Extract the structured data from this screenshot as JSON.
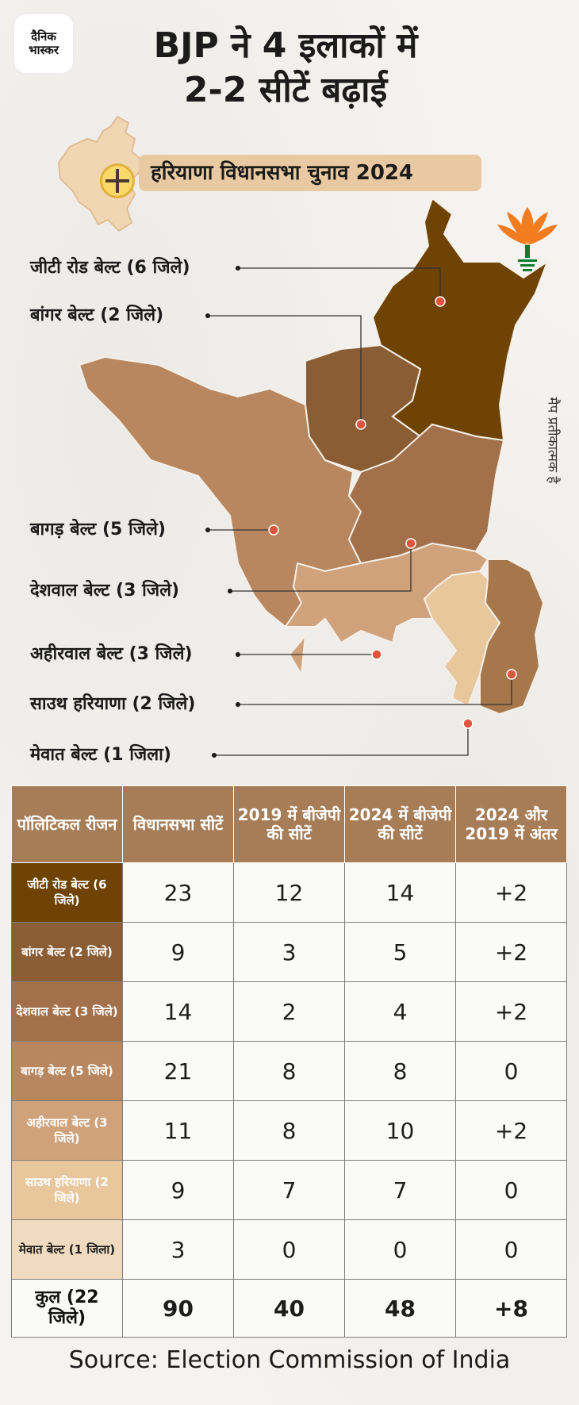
{
  "logo": {
    "line1": "दैनिक",
    "line2": "भास्कर"
  },
  "title": {
    "line1": "BJP ने 4 इलाकों में",
    "line2": "2-2 सीटें बढ़ाई"
  },
  "banner": "हरियाणा विधानसभा चुनाव 2024",
  "disclaimer": "मैप प्रतीकात्मक है",
  "colors": {
    "header_bg": "#a77d57",
    "positive": "#2d9b2d",
    "zero": "#d52121"
  },
  "regions": [
    {
      "label": "जीटी रोड बेल्ट (6 जिले)",
      "color": "#6e4303"
    },
    {
      "label": "बांगर बेल्ट (2 जिले)",
      "color": "#8b5d35"
    },
    {
      "label": "बागड़ बेल्ट (5 जिले)",
      "color": "#b8875f"
    },
    {
      "label": "देशवाल बेल्ट (3 जिले)",
      "color": "#a2704a"
    },
    {
      "label": "अहीरवाल बेल्ट (3 जिले)",
      "color": "#d0a27b"
    },
    {
      "label": "साउथ हरियाणा (2 जिले)",
      "color": "#e8c79d"
    },
    {
      "label": "मेवात बेल्ट (1 जिला)",
      "color": "#f1dbc0"
    }
  ],
  "chart_data": {
    "type": "table",
    "columns": [
      "पॉलिटिकल रीजन",
      "विधानसभा सीटें",
      "2019 में बीजेपी की सीटें",
      "2024 में बीजेपी की सीटें",
      "2024 और 2019 में अंतर"
    ],
    "rows": [
      {
        "region": "जीटी रोड बेल्ट (6 जिले)",
        "seats": "23",
        "bjp2019": "12",
        "bjp2024": "14",
        "diff": "+2",
        "color": "#6e4303",
        "text": "#ffffff"
      },
      {
        "region": "बांगर बेल्ट (2 जिले)",
        "seats": "9",
        "bjp2019": "3",
        "bjp2024": "5",
        "diff": "+2",
        "color": "#8b5d35",
        "text": "#ffffff"
      },
      {
        "region": "देशवाल बेल्ट (3 जिले)",
        "seats": "14",
        "bjp2019": "2",
        "bjp2024": "4",
        "diff": "+2",
        "color": "#a2704a",
        "text": "#ffffff"
      },
      {
        "region": "बागड़ बेल्ट (5 जिले)",
        "seats": "21",
        "bjp2019": "8",
        "bjp2024": "8",
        "diff": "0",
        "color": "#b8875f",
        "text": "#ffffff"
      },
      {
        "region": "अहीरवाल बेल्ट (3 जिले)",
        "seats": "11",
        "bjp2019": "8",
        "bjp2024": "10",
        "diff": "+2",
        "color": "#d0a27b",
        "text": "#ffffff"
      },
      {
        "region": "साउथ हरियाणा (2 जिले)",
        "seats": "9",
        "bjp2019": "7",
        "bjp2024": "7",
        "diff": "0",
        "color": "#e8c79d",
        "text": "#ffffff"
      },
      {
        "region": "मेवात बेल्ट (1 जिला)",
        "seats": "3",
        "bjp2019": "0",
        "bjp2024": "0",
        "diff": "0",
        "color": "#f1dbc0",
        "text": "#1d1d1d"
      }
    ],
    "total": {
      "region": "कुल (22 जिले)",
      "seats": "90",
      "bjp2019": "40",
      "bjp2024": "48",
      "diff": "+8"
    }
  },
  "source": "Source: Election Commission of India"
}
